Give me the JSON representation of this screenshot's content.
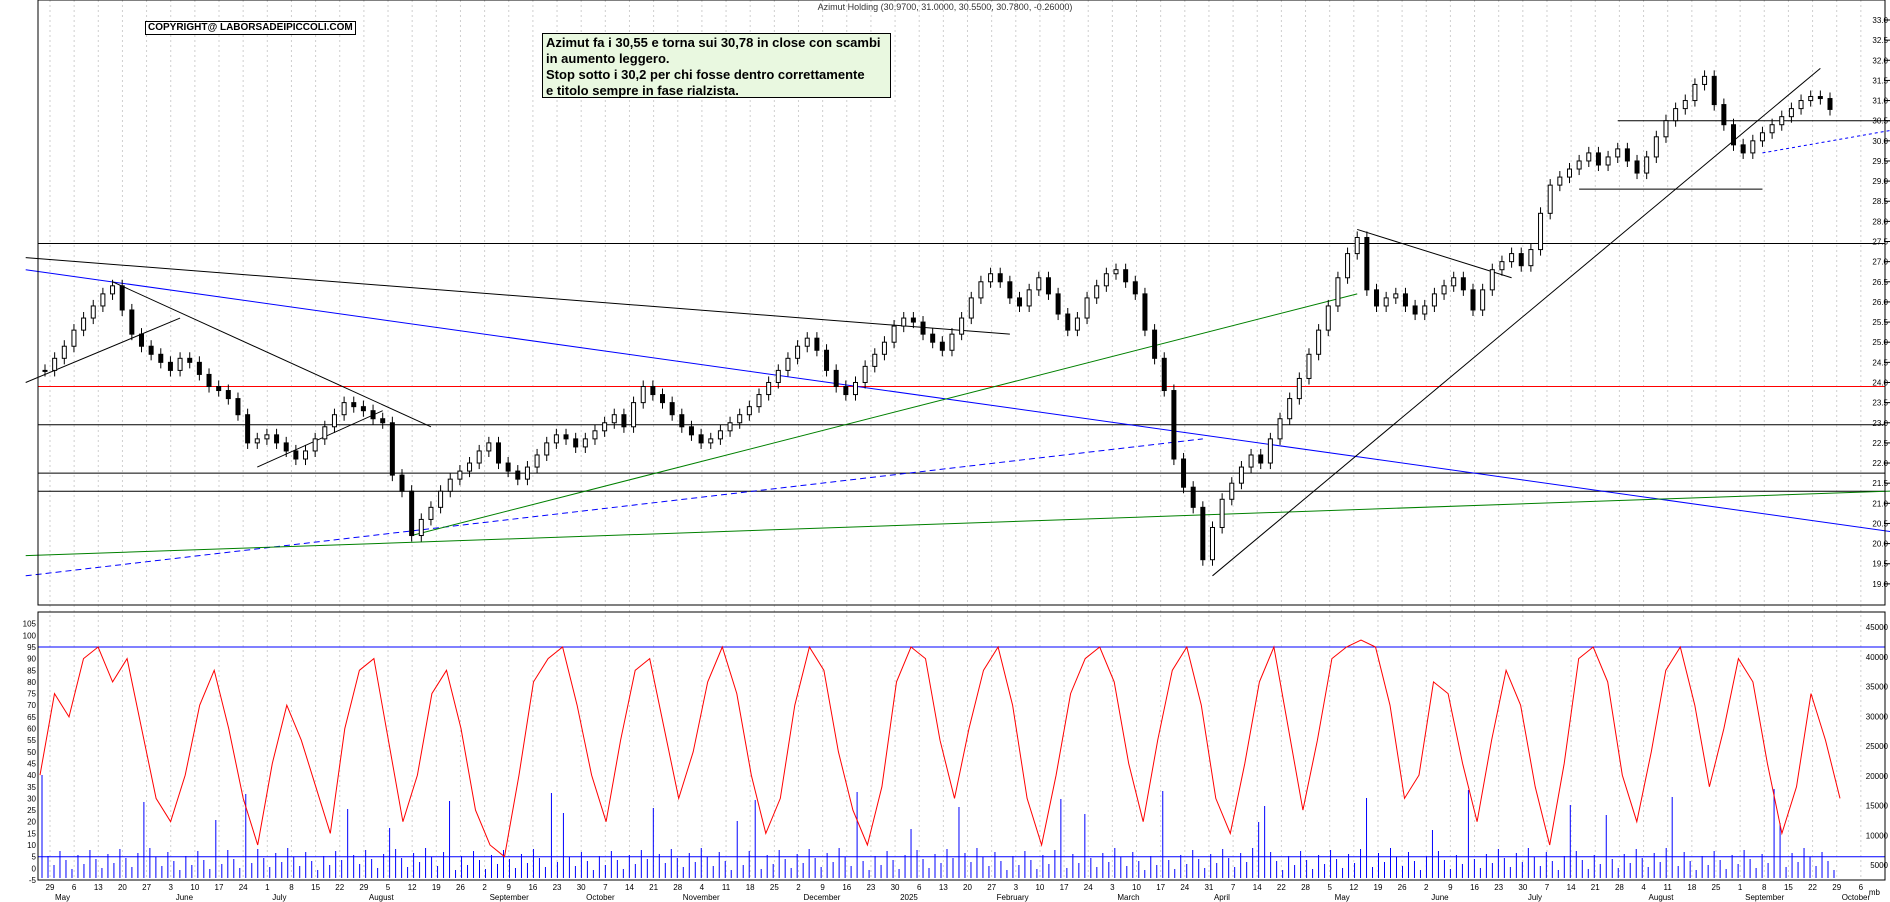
{
  "title": "Azimut Holding (30.9700, 31.0000, 30.5500, 30.7800, -0.26000)",
  "copyright": "COPYRIGHT@ LABORSADEIPICCOLI.COM",
  "note": {
    "lines": [
      "Azimut fa i 30,55 e torna sui 30,78 in close con scambi",
      "in aumento leggero.",
      "Stop sotto i 30,2 per chi fosse dentro correttamente",
      "e titolo sempre in fase rialzista."
    ]
  },
  "colors": {
    "candle": "#000000",
    "support_line": "#000000",
    "red_level": "#ff0000",
    "blue_trend": "#0000ff",
    "green_trend": "#008000",
    "oscillator": "#ff0000",
    "volume": "#0000ff"
  },
  "chart_data": [
    {
      "type": "candlestick",
      "name": "price",
      "ylim": [
        18.5,
        33.0
      ],
      "y_ticks": [
        "33.0",
        "32.5",
        "32.0",
        "31.5",
        "31.0",
        "30.5",
        "30.0",
        "29.5",
        "29.0",
        "28.5",
        "28.0",
        "27.5",
        "27.0",
        "26.5",
        "26.0",
        "25.5",
        "25.0",
        "24.5",
        "24.0",
        "23.5",
        "23.0",
        "22.5",
        "22.0",
        "21.5",
        "21.0",
        "20.5",
        "20.0",
        "19.5",
        "19.0"
      ],
      "horizontal_levels": [
        {
          "value": 27.45,
          "color": "#000000"
        },
        {
          "value": 23.9,
          "color": "#ff0000"
        },
        {
          "value": 22.95,
          "color": "#000000"
        },
        {
          "value": 21.75,
          "color": "#000000"
        },
        {
          "value": 21.3,
          "color": "#000000"
        }
      ],
      "last": {
        "open": 30.97,
        "high": 31.0,
        "low": 30.55,
        "close": 30.78,
        "change": -0.26
      },
      "closes": [
        24.3,
        24.6,
        24.9,
        25.3,
        25.6,
        25.9,
        26.2,
        26.4,
        25.8,
        25.2,
        24.9,
        24.7,
        24.5,
        24.3,
        24.6,
        24.5,
        24.2,
        23.9,
        23.8,
        23.6,
        23.2,
        22.5,
        22.6,
        22.7,
        22.5,
        22.3,
        22.1,
        22.3,
        22.6,
        22.9,
        23.2,
        23.5,
        23.4,
        23.3,
        23.1,
        23.0,
        21.7,
        21.3,
        20.2,
        20.6,
        20.9,
        21.3,
        21.6,
        21.8,
        22.0,
        22.3,
        22.5,
        22.0,
        21.8,
        21.6,
        21.9,
        22.2,
        22.5,
        22.7,
        22.6,
        22.4,
        22.6,
        22.8,
        23.0,
        23.2,
        22.9,
        23.5,
        23.9,
        23.7,
        23.5,
        23.2,
        22.9,
        22.7,
        22.5,
        22.6,
        22.8,
        23.0,
        23.2,
        23.4,
        23.7,
        24.0,
        24.3,
        24.6,
        24.9,
        25.1,
        24.8,
        24.3,
        23.9,
        23.7,
        24.0,
        24.4,
        24.7,
        25.0,
        25.4,
        25.6,
        25.5,
        25.2,
        25.0,
        24.8,
        25.2,
        25.6,
        26.1,
        26.5,
        26.7,
        26.5,
        26.1,
        25.9,
        26.3,
        26.6,
        26.2,
        25.7,
        25.3,
        25.6,
        26.1,
        26.4,
        26.7,
        26.8,
        26.5,
        26.2,
        25.3,
        24.6,
        23.8,
        22.1,
        21.4,
        20.9,
        19.6,
        20.4,
        21.1,
        21.5,
        21.9,
        22.2,
        22.0,
        22.6,
        23.1,
        23.6,
        24.1,
        24.7,
        25.3,
        25.9,
        26.6,
        27.2,
        27.6,
        26.3,
        25.9,
        26.1,
        26.2,
        25.9,
        25.7,
        25.9,
        26.2,
        26.4,
        26.6,
        26.3,
        25.8,
        26.3,
        26.8,
        27.0,
        27.2,
        26.9,
        27.3,
        28.2,
        28.9,
        29.1,
        29.3,
        29.5,
        29.7,
        29.4,
        29.6,
        29.8,
        29.5,
        29.2,
        29.6,
        30.1,
        30.5,
        30.8,
        31.0,
        31.4,
        31.6,
        30.9,
        30.4,
        29.9,
        29.7,
        30.0,
        30.2,
        30.4,
        30.6,
        30.8,
        31.0,
        31.1,
        31.05,
        30.78
      ]
    },
    {
      "type": "line+bar",
      "name": "oscillator and volume",
      "y_ticks_left": [
        "105",
        "100",
        "95",
        "90",
        "85",
        "80",
        "75",
        "70",
        "65",
        "60",
        "55",
        "50",
        "45",
        "40",
        "35",
        "30",
        "25",
        "20",
        "15",
        "10",
        "5",
        "0",
        "-5"
      ],
      "y_ticks_right": [
        "45000",
        "40000",
        "35000",
        "30000",
        "25000",
        "20000",
        "15000",
        "10000",
        "5000"
      ],
      "horizontal_levels": [
        95,
        5
      ],
      "oscillator_values": [
        40,
        75,
        65,
        90,
        95,
        80,
        90,
        60,
        30,
        20,
        40,
        70,
        85,
        60,
        30,
        10,
        45,
        70,
        55,
        35,
        15,
        60,
        85,
        90,
        55,
        20,
        40,
        75,
        85,
        60,
        25,
        10,
        5,
        40,
        80,
        90,
        95,
        70,
        40,
        20,
        55,
        85,
        90,
        60,
        30,
        50,
        80,
        95,
        75,
        40,
        15,
        30,
        70,
        95,
        85,
        50,
        25,
        10,
        35,
        80,
        95,
        90,
        55,
        30,
        60,
        85,
        95,
        70,
        30,
        10,
        40,
        75,
        90,
        95,
        80,
        45,
        20,
        55,
        85,
        95,
        70,
        30,
        15,
        45,
        80,
        95,
        60,
        25,
        55,
        90,
        95,
        98,
        95,
        70,
        30,
        40,
        80,
        75,
        45,
        20,
        55,
        85,
        70,
        35,
        10,
        45,
        90,
        95,
        80,
        40,
        20,
        50,
        85,
        95,
        70,
        35,
        60,
        90,
        80,
        45,
        15,
        35,
        75,
        55,
        30
      ]
    }
  ],
  "x_axis": {
    "day_labels": [
      "29",
      "6",
      "13",
      "20",
      "27",
      "3",
      "10",
      "17",
      "24",
      "1",
      "8",
      "15",
      "22",
      "29",
      "5",
      "12",
      "19",
      "26",
      "2",
      "9",
      "16",
      "23",
      "30",
      "7",
      "14",
      "21",
      "28",
      "4",
      "11",
      "18",
      "25",
      "2",
      "9",
      "16",
      "23",
      "30",
      "6",
      "13",
      "20",
      "27",
      "3",
      "10",
      "17",
      "24",
      "3",
      "10",
      "17",
      "24",
      "31",
      "7",
      "14",
      "22",
      "28",
      "5",
      "12",
      "19",
      "26",
      "2",
      "9",
      "16",
      "23",
      "30",
      "7",
      "14",
      "21",
      "28",
      "4",
      "11",
      "18",
      "25",
      "1",
      "8",
      "15",
      "22",
      "29",
      "6"
    ],
    "month_labels": [
      "May",
      "June",
      "July",
      "August",
      "September",
      "October",
      "November",
      "December",
      "2025",
      "February",
      "March",
      "April",
      "May",
      "June",
      "July",
      "August",
      "September",
      "October"
    ]
  },
  "volume_last_label": "mb"
}
